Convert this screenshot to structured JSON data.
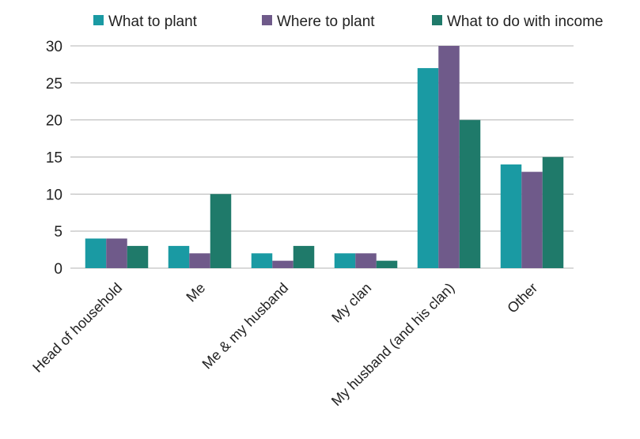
{
  "chart_data": {
    "type": "bar",
    "categories": [
      "Head of household",
      "Me",
      "Me & my husband",
      "My clan",
      "My husband (and his clan)",
      "Other"
    ],
    "series": [
      {
        "name": "What to plant",
        "color": "#1a9aa3",
        "values": [
          4,
          3,
          2,
          2,
          27,
          14
        ]
      },
      {
        "name": "Where to plant",
        "color": "#6f5a8a",
        "values": [
          4,
          2,
          1,
          2,
          30,
          13
        ]
      },
      {
        "name": "What to do with income",
        "color": "#1f7a6a",
        "values": [
          3,
          10,
          3,
          1,
          20,
          15
        ]
      }
    ],
    "ylim": [
      0,
      30
    ],
    "yticks": [
      0,
      5,
      10,
      15,
      20,
      25,
      30
    ],
    "grid": true,
    "legend_position": "top"
  }
}
